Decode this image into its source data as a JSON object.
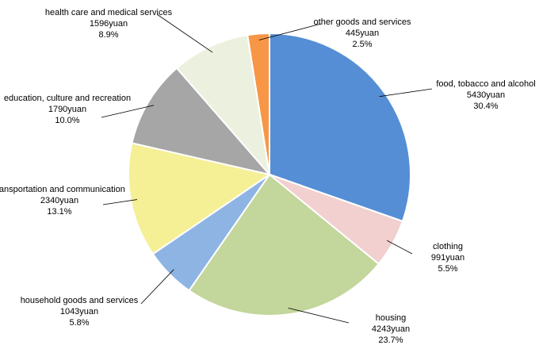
{
  "chart_data": {
    "type": "pie",
    "categories": [
      "food, tobacco and alcohol",
      "clothing",
      "housing",
      "household goods and services",
      "transportation and communication",
      "education, culture and recreation",
      "health care and medical services",
      "other goods and services"
    ],
    "values": [
      5430,
      991,
      4243,
      1043,
      2340,
      1790,
      1596,
      445
    ],
    "value_labels": [
      "5430yuan",
      "991yuan",
      "4243yuan",
      "1043yuan",
      "2340yuan",
      "1790yuan",
      "1596yuan",
      "445yuan"
    ],
    "percents": [
      30.4,
      5.5,
      23.7,
      5.8,
      13.1,
      10.0,
      8.9,
      2.5
    ],
    "percent_labels": [
      "30.4%",
      "5.5%",
      "23.7%",
      "5.8%",
      "13.1%",
      "10.0%",
      "8.9%",
      "2.5%"
    ],
    "colors": [
      "#558ed5",
      "#f2d0d0",
      "#c3d69b",
      "#8eb4e3",
      "#f5ef96",
      "#a6a6a6",
      "#ebf1de",
      "#f79646"
    ]
  }
}
